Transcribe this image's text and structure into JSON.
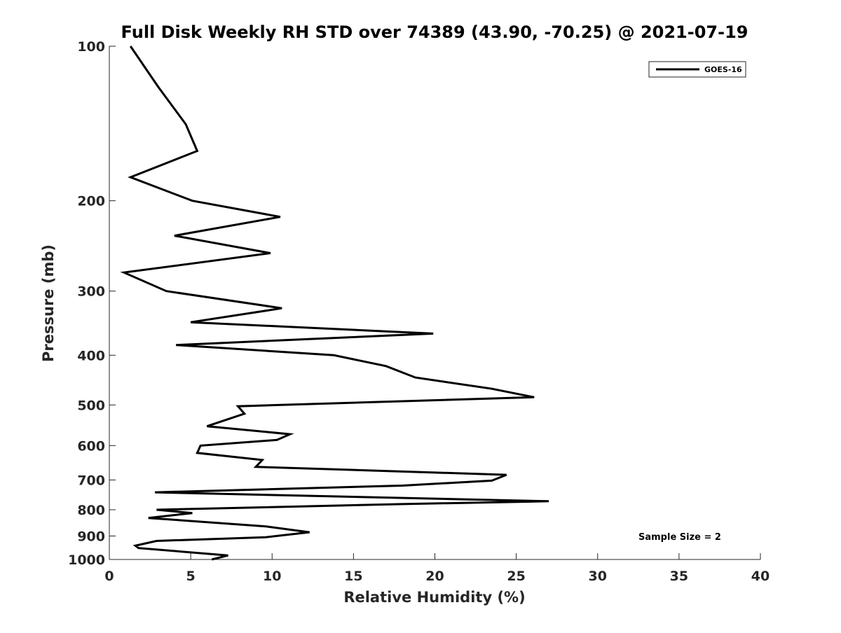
{
  "chart_data": {
    "type": "line",
    "title": "Full Disk Weekly RH STD over 74389 (43.90, -70.25) @ 2021-07-19",
    "xlabel": "Relative Humidity (%)",
    "ylabel": "Pressure (mb)",
    "xlim": [
      0,
      40
    ],
    "ylim": [
      1000,
      100
    ],
    "y_scale": "log",
    "x_ticks": [
      0,
      5,
      10,
      15,
      20,
      25,
      30,
      35,
      40
    ],
    "y_ticks": [
      100,
      200,
      300,
      400,
      500,
      600,
      700,
      800,
      900,
      1000
    ],
    "grid": false,
    "legend_position": "top-right",
    "series": [
      {
        "name": "GOES-16",
        "color": "#000000",
        "points": [
          [
            1.3,
            100
          ],
          [
            3.0,
            120
          ],
          [
            4.7,
            142
          ],
          [
            5.4,
            160
          ],
          [
            1.3,
            180
          ],
          [
            5.1,
            200
          ],
          [
            10.5,
            215
          ],
          [
            4.0,
            234
          ],
          [
            9.9,
            253
          ],
          [
            0.9,
            276
          ],
          [
            3.5,
            300
          ],
          [
            10.6,
            324
          ],
          [
            5.0,
            345
          ],
          [
            19.9,
            363
          ],
          [
            4.1,
            382
          ],
          [
            13.8,
            400
          ],
          [
            17.0,
            420
          ],
          [
            18.8,
            442
          ],
          [
            23.5,
            465
          ],
          [
            26.1,
            483
          ],
          [
            7.9,
            503
          ],
          [
            8.3,
            520
          ],
          [
            6.0,
            550
          ],
          [
            11.1,
            570
          ],
          [
            10.3,
            585
          ],
          [
            5.6,
            600
          ],
          [
            5.4,
            620
          ],
          [
            9.4,
            640
          ],
          [
            9.0,
            660
          ],
          [
            24.4,
            684
          ],
          [
            23.5,
            702
          ],
          [
            18.0,
            718
          ],
          [
            2.8,
            740
          ],
          [
            27.0,
            770
          ],
          [
            18.0,
            780
          ],
          [
            2.9,
            800
          ],
          [
            5.1,
            812
          ],
          [
            2.4,
            830
          ],
          [
            9.6,
            862
          ],
          [
            12.3,
            885
          ],
          [
            9.6,
            905
          ],
          [
            2.9,
            920
          ],
          [
            1.6,
            940
          ],
          [
            1.8,
            950
          ],
          [
            7.3,
            982
          ],
          [
            6.3,
            1000
          ]
        ]
      }
    ],
    "annotations": [
      {
        "text": "Sample Size = 2"
      }
    ]
  }
}
